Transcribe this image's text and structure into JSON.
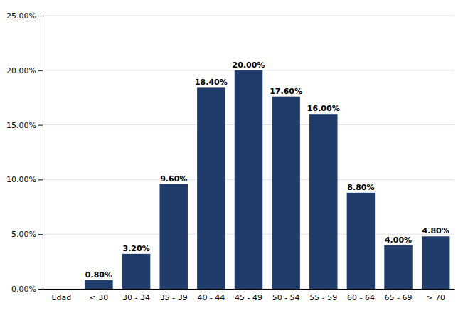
{
  "chart_data": {
    "type": "bar",
    "xlabel": "Edad",
    "categories": [
      "< 30",
      "30 - 34",
      "35 - 39",
      "40 - 44",
      "45 - 49",
      "50 - 54",
      "55 - 59",
      "60 - 64",
      "65 - 69",
      "> 70"
    ],
    "values": [
      0.008,
      0.032,
      0.096,
      0.184,
      0.2,
      0.176,
      0.16,
      0.088,
      0.04,
      0.048
    ],
    "value_labels": [
      "0.80%",
      "3.20%",
      "9.60%",
      "18.40%",
      "20.00%",
      "17.60%",
      "16.00%",
      "8.80%",
      "4.00%",
      "4.80%"
    ],
    "color": "#1F3C6B",
    "ylim": [
      0,
      0.25
    ],
    "yticks": [
      {
        "value": 0.0,
        "label": "0.00%"
      },
      {
        "value": 0.05,
        "label": "5.00%"
      },
      {
        "value": 0.1,
        "label": "10.00%"
      },
      {
        "value": 0.15,
        "label": "15.00%"
      },
      {
        "value": 0.2,
        "label": "20.00%"
      },
      {
        "value": 0.25,
        "label": "25.00%"
      }
    ],
    "grid": true,
    "data_labels": true
  }
}
